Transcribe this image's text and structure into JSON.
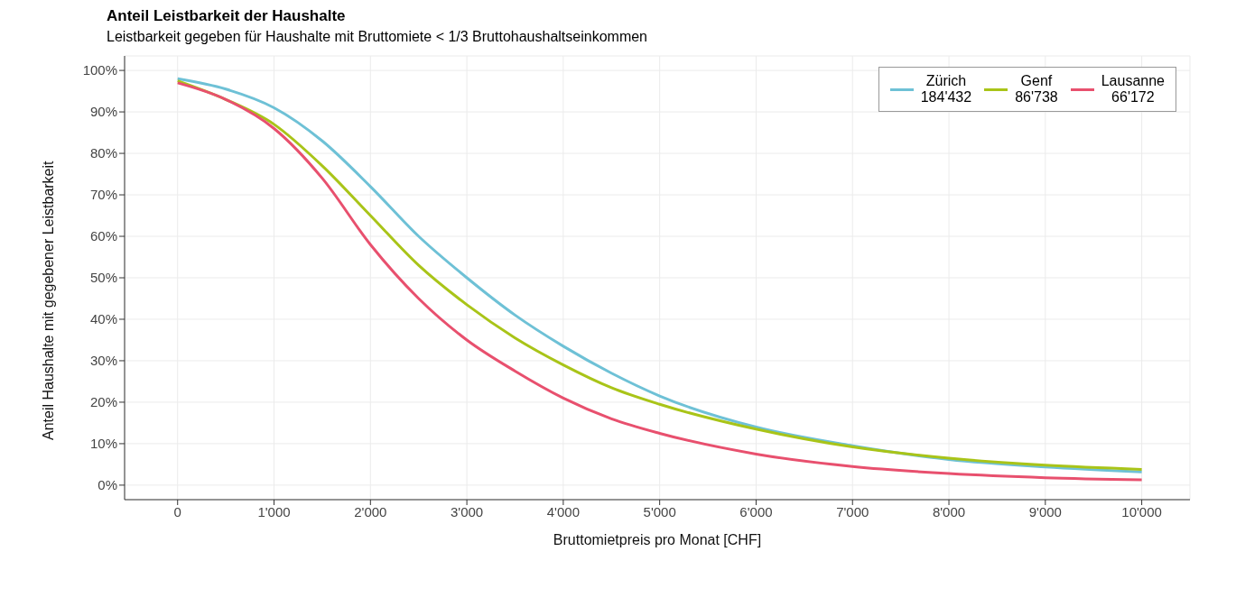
{
  "chart_data": {
    "type": "line",
    "title": "Anteil Leistbarkeit der Haushalte",
    "subtitle": "Leistbarkeit gegeben für Haushalte mit Bruttomiete < 1/3 Bruttohaushaltseinkommen",
    "xlabel": "Bruttomietpreis pro Monat [CHF]",
    "ylabel": "Anteil Haushalte mit gegebener Leistbarkeit",
    "x": [
      0,
      500,
      1000,
      1500,
      2000,
      2500,
      3000,
      3500,
      4000,
      4500,
      5000,
      6000,
      7000,
      8000,
      9000,
      10000
    ],
    "series": [
      {
        "name": "Zürich\n184'432",
        "color": "#6ec1d6",
        "values": [
          98,
          95.5,
          91,
          83,
          72,
          60,
          50,
          41,
          33.5,
          27,
          21.5,
          14,
          9.5,
          6.2,
          4.4,
          3.2
        ]
      },
      {
        "name": "Genf\n86'738",
        "color": "#a9c418",
        "values": [
          97.5,
          93,
          87,
          77,
          65,
          53,
          43.5,
          35.5,
          29,
          23.5,
          19.5,
          13.5,
          9.2,
          6.5,
          4.8,
          3.8
        ]
      },
      {
        "name": "Lausanne\n66'172",
        "color": "#e8506e",
        "values": [
          97,
          93,
          86,
          74,
          58,
          45,
          35,
          27.5,
          21,
          16,
          12.5,
          7.5,
          4.5,
          2.8,
          1.8,
          1.3
        ]
      }
    ],
    "xlim": [
      -550,
      10500
    ],
    "xticks": [
      {
        "value": 0,
        "label": "0"
      },
      {
        "value": 1000,
        "label": "1'000"
      },
      {
        "value": 2000,
        "label": "2'000"
      },
      {
        "value": 3000,
        "label": "3'000"
      },
      {
        "value": 4000,
        "label": "4'000"
      },
      {
        "value": 5000,
        "label": "5'000"
      },
      {
        "value": 6000,
        "label": "6'000"
      },
      {
        "value": 7000,
        "label": "7'000"
      },
      {
        "value": 8000,
        "label": "8'000"
      },
      {
        "value": 9000,
        "label": "9'000"
      },
      {
        "value": 10000,
        "label": "10'000"
      }
    ],
    "ylim": [
      -3.5,
      103.5
    ],
    "yticks": [
      {
        "value": 0,
        "label": "0%"
      },
      {
        "value": 10,
        "label": "10%"
      },
      {
        "value": 20,
        "label": "20%"
      },
      {
        "value": 30,
        "label": "30%"
      },
      {
        "value": 40,
        "label": "40%"
      },
      {
        "value": 50,
        "label": "50%"
      },
      {
        "value": 60,
        "label": "60%"
      },
      {
        "value": 70,
        "label": "70%"
      },
      {
        "value": 80,
        "label": "80%"
      },
      {
        "value": 90,
        "label": "90%"
      },
      {
        "value": 100,
        "label": "100%"
      }
    ],
    "grid": true,
    "legend": "top right",
    "marker": "none",
    "line_style": "solid"
  }
}
